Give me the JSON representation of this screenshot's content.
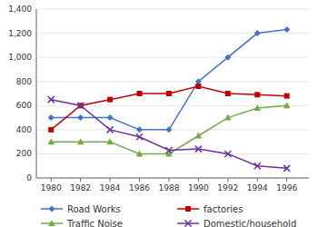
{
  "chart_data": {
    "type": "line",
    "x": [
      1980,
      1982,
      1984,
      1986,
      1988,
      1990,
      1992,
      1994,
      1996
    ],
    "series": [
      {
        "name": "Road Works",
        "color": "#4472C4",
        "marker": "diamond",
        "values": [
          500,
          500,
          500,
          400,
          400,
          800,
          1000,
          1200,
          1230
        ]
      },
      {
        "name": "factories",
        "color": "#C00000",
        "marker": "square",
        "values": [
          400,
          600,
          650,
          700,
          700,
          760,
          700,
          690,
          680
        ]
      },
      {
        "name": "Traffic Noise",
        "color": "#70AD47",
        "marker": "triangle",
        "values": [
          300,
          300,
          300,
          200,
          200,
          350,
          500,
          580,
          600
        ]
      },
      {
        "name": "Domestic/household",
        "color": "#7030A0",
        "marker": "x",
        "values": [
          650,
          600,
          400,
          340,
          230,
          240,
          200,
          100,
          80
        ]
      }
    ],
    "xlim": [
      1979,
      1997.5
    ],
    "xticks": [
      1980,
      1982,
      1984,
      1986,
      1988,
      1990,
      1992,
      1994,
      1996
    ],
    "ylim": [
      0,
      1400
    ],
    "yticks": [
      0,
      200,
      400,
      600,
      800,
      {
        "value": 1000,
        "label": "1,000"
      },
      {
        "value": 1200,
        "label": "1,200"
      },
      {
        "value": 1400,
        "label": "1,400"
      }
    ],
    "grid": "y",
    "legend": "bottom"
  }
}
